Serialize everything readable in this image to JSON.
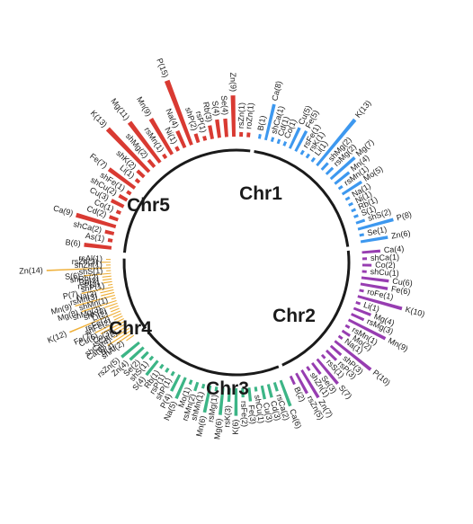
{
  "chart_data": {
    "type": "circular-bar",
    "title": "",
    "colors": {
      "Chr1": "#d93a32",
      "Chr2": "#3d98ef",
      "Chr3": "#973db1",
      "Chr4": "#3cb586",
      "Chr5": "#efb13c",
      "axis": "#1a1a1a"
    },
    "chromosomes": [
      {
        "name": "Chr1",
        "bars": [
          {
            "label": "B(6)",
            "value": 6
          },
          {
            "label": "As(1)",
            "value": 1
          },
          {
            "label": "shCa(2)",
            "value": 2
          },
          {
            "label": "Ca(9)",
            "value": 9
          },
          {
            "label": "Cd(2)",
            "value": 2
          },
          {
            "label": "Co(1)",
            "value": 1
          },
          {
            "label": "Cu(3)",
            "value": 3
          },
          {
            "label": "shCu(2)",
            "value": 2
          },
          {
            "label": "shFe(1)",
            "value": 1
          },
          {
            "label": "Fe(7)",
            "value": 7
          },
          {
            "label": "Li(1)",
            "value": 1
          },
          {
            "label": "shK(2)",
            "value": 2
          },
          {
            "label": "K(13)",
            "value": 13
          },
          {
            "label": "shMg(2)",
            "value": 2
          },
          {
            "label": "Mg(11)",
            "value": 11
          },
          {
            "label": "rsMn(1)",
            "value": 1
          },
          {
            "label": "Mn(9)",
            "value": 9
          },
          {
            "label": "Ni(1)",
            "value": 1
          },
          {
            "label": "Na(4)",
            "value": 4
          },
          {
            "label": "P(15)",
            "value": 15
          },
          {
            "label": "shP(2)",
            "value": 2
          },
          {
            "label": "rsP(1)",
            "value": 1
          },
          {
            "label": "Rb(3)",
            "value": 3
          },
          {
            "label": "S(4)",
            "value": 4
          },
          {
            "label": "Se(4)",
            "value": 4
          },
          {
            "label": "Zn(9)",
            "value": 9
          },
          {
            "label": "rsZn(1)",
            "value": 1
          },
          {
            "label": "roZn(1)",
            "value": 1
          }
        ]
      },
      {
        "name": "Chr2",
        "bars": [
          {
            "label": "B(1)",
            "value": 1
          },
          {
            "label": "Ca(8)",
            "value": 8
          },
          {
            "label": "shCa(1)",
            "value": 1
          },
          {
            "label": "Cd(1)",
            "value": 1
          },
          {
            "label": "Co(1)",
            "value": 1
          },
          {
            "label": "Cu(5)",
            "value": 5
          },
          {
            "label": "Fe(5)",
            "value": 5
          },
          {
            "label": "rsFe(1)",
            "value": 1
          },
          {
            "label": "rsK(1)",
            "value": 1
          },
          {
            "label": "Li(1)",
            "value": 1
          },
          {
            "label": "K(13)",
            "value": 13
          },
          {
            "label": "shMg(2)",
            "value": 2
          },
          {
            "label": "rsMg(2)",
            "value": 2
          },
          {
            "label": "Mg(7)",
            "value": 7
          },
          {
            "label": "Mn(4)",
            "value": 4
          },
          {
            "label": "rsMn(1)",
            "value": 1
          },
          {
            "label": "Mo(5)",
            "value": 5
          },
          {
            "label": "Na(1)",
            "value": 1
          },
          {
            "label": "Ni(1)",
            "value": 1
          },
          {
            "label": "Rb(1)",
            "value": 1
          },
          {
            "label": "S(1)",
            "value": 1
          },
          {
            "label": "shS(2)",
            "value": 2
          },
          {
            "label": "P(8)",
            "value": 8
          },
          {
            "label": "Se(1)",
            "value": 1
          },
          {
            "label": "Zn(6)",
            "value": 6
          }
        ]
      },
      {
        "name": "Chr3",
        "bars": [
          {
            "label": "Ca(4)",
            "value": 4
          },
          {
            "label": "shCa(1)",
            "value": 1
          },
          {
            "label": "Co(2)",
            "value": 2
          },
          {
            "label": "shCu(1)",
            "value": 1
          },
          {
            "label": "Cu(6)",
            "value": 6
          },
          {
            "label": "Fe(6)",
            "value": 6
          },
          {
            "label": "roFe(1)",
            "value": 1
          },
          {
            "label": "K(10)",
            "value": 10
          },
          {
            "label": "Li(1)",
            "value": 1
          },
          {
            "label": "Mg(4)",
            "value": 4
          },
          {
            "label": "rsMg(3)",
            "value": 3
          },
          {
            "label": "Mn(9)",
            "value": 9
          },
          {
            "label": "rsMn(1)",
            "value": 1
          },
          {
            "label": "Mo(2)",
            "value": 2
          },
          {
            "label": "Na(1)",
            "value": 1
          },
          {
            "label": "P(10)",
            "value": 10
          },
          {
            "label": "shP(3)",
            "value": 3
          },
          {
            "label": "rsP(3)",
            "value": 3
          },
          {
            "label": "rsS(1)",
            "value": 1
          },
          {
            "label": "S(7)",
            "value": 7
          },
          {
            "label": "Se(3)",
            "value": 3
          },
          {
            "label": "shZn(1)",
            "value": 1
          },
          {
            "label": "Zn(7)",
            "value": 7
          },
          {
            "label": "rsZn(5)",
            "value": 5
          },
          {
            "label": "B(2)",
            "value": 2
          }
        ]
      },
      {
        "name": "Chr4",
        "bars": [
          {
            "label": "Ca(6)",
            "value": 6
          },
          {
            "label": "rsCa(2)",
            "value": 2
          },
          {
            "label": "Cd(3)",
            "value": 3
          },
          {
            "label": "Cu(3)",
            "value": 3
          },
          {
            "label": "shCu(1)",
            "value": 1
          },
          {
            "label": "Fe(3)",
            "value": 3
          },
          {
            "label": "rsFe(2)",
            "value": 2
          },
          {
            "label": "K(6)",
            "value": 6
          },
          {
            "label": "rsK(3)",
            "value": 3
          },
          {
            "label": "Mg(6)",
            "value": 6
          },
          {
            "label": "rsMg(1)",
            "value": 1
          },
          {
            "label": "Mn(6)",
            "value": 6
          },
          {
            "label": "shMn(1)",
            "value": 1
          },
          {
            "label": "rsMn(2)",
            "value": 2
          },
          {
            "label": "Mo(1)",
            "value": 1
          },
          {
            "label": "Na(5)",
            "value": 5
          },
          {
            "label": "P(4)",
            "value": 4
          },
          {
            "label": "shP(1)",
            "value": 1
          },
          {
            "label": "rsP(1)",
            "value": 1
          },
          {
            "label": "Rb(1)",
            "value": 1
          },
          {
            "label": "S(4)",
            "value": 4
          },
          {
            "label": "shS(1)",
            "value": 1
          },
          {
            "label": "Se(2)",
            "value": 2
          },
          {
            "label": "Zn(4)",
            "value": 4
          },
          {
            "label": "rsZn(5)",
            "value": 5
          }
        ]
      },
      {
        "name": "Chr5",
        "bars": [
          {
            "label": "shAl(2)",
            "value": 2
          },
          {
            "label": "B(4)",
            "value": 4
          },
          {
            "label": "Ca(6)",
            "value": 6
          },
          {
            "label": "shCa(4)",
            "value": 4
          },
          {
            "label": "rsCa(2)",
            "value": 2
          },
          {
            "label": "Co(3)",
            "value": 3
          },
          {
            "label": "Cu(6)",
            "value": 6
          },
          {
            "label": "Fe(7)",
            "value": 7
          },
          {
            "label": "shFe(2)",
            "value": 2
          },
          {
            "label": "rsFe(2)",
            "value": 2
          },
          {
            "label": "K(12)",
            "value": 12
          },
          {
            "label": "Li(2)",
            "value": 2
          },
          {
            "label": "shK(2)",
            "value": 2
          },
          {
            "label": "shMg(3)",
            "value": 3
          },
          {
            "label": "Mg(8)",
            "value": 8
          },
          {
            "label": "shMn(1)",
            "value": 1
          },
          {
            "label": "Mn(9)",
            "value": 9
          },
          {
            "label": "rsMn(3)",
            "value": 3
          },
          {
            "label": "Na(3)",
            "value": 3
          },
          {
            "label": "P(7)",
            "value": 7
          },
          {
            "label": "shP(1)",
            "value": 1
          },
          {
            "label": "rsP(2)",
            "value": 2
          },
          {
            "label": "Rb(2)",
            "value": 2
          },
          {
            "label": "shRb(2)",
            "value": 2
          },
          {
            "label": "S(6)",
            "value": 6
          },
          {
            "label": "shS(1)",
            "value": 1
          },
          {
            "label": "Zn(14)",
            "value": 14
          },
          {
            "label": "shZn(1)",
            "value": 1
          },
          {
            "label": "rsZn(2)",
            "value": 2
          },
          {
            "label": "rsAl(1)",
            "value": 1
          }
        ]
      }
    ]
  }
}
